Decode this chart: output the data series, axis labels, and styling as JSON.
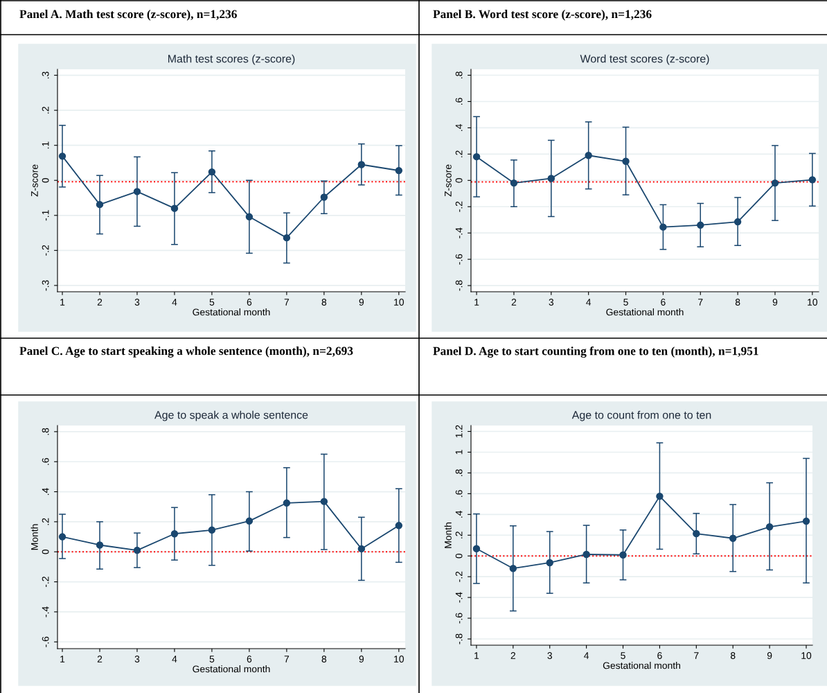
{
  "chart_data": [
    {
      "type": "line",
      "title": "Panel A. Math test score (z-score), n=1,236",
      "subtitle": "Math test scores (z-score)",
      "xlabel": "Gestational month",
      "ylabel": "Z-score",
      "x": [
        1,
        2,
        3,
        4,
        5,
        6,
        7,
        8,
        9,
        10
      ],
      "series": [
        {
          "color": "#1a476f",
          "values": [
            0.069,
            -0.069,
            -0.032,
            -0.08,
            0.024,
            -0.104,
            -0.164,
            -0.048,
            0.045,
            0.028
          ],
          "errors": [
            [
              -0.019,
              0.157
            ],
            [
              -0.153,
              0.014
            ],
            [
              -0.131,
              0.067
            ],
            [
              -0.183,
              0.022
            ],
            [
              -0.035,
              0.084
            ],
            [
              -0.208,
              0.0
            ],
            [
              -0.236,
              -0.093
            ],
            [
              -0.095,
              -0.002
            ],
            [
              -0.013,
              0.104
            ],
            [
              -0.042,
              0.099
            ]
          ]
        }
      ],
      "xlim": [
        0.87,
        10.17
      ],
      "xticks": [
        1,
        2,
        3,
        4,
        5,
        6,
        7,
        8,
        9,
        10
      ],
      "ylim": [
        -0.318,
        0.317
      ],
      "yticks": [
        {
          "value": -0.3,
          "label": "-.3"
        },
        {
          "value": -0.2,
          "label": "-.2"
        },
        {
          "value": -0.1,
          "label": "-.1"
        },
        0,
        {
          "value": 0.1,
          "label": ".1"
        },
        {
          "value": 0.2,
          "label": ".2"
        },
        {
          "value": 0.3,
          "label": ".3"
        }
      ],
      "ref_lines": [
        {
          "axis": "y",
          "value": -0.004,
          "color": "#ff0000",
          "line_style": "dotted"
        }
      ],
      "grid": "y",
      "marker": "circle",
      "line_style": "solid"
    },
    {
      "type": "line",
      "title": "Panel B. Word test score (z-score), n=1,236",
      "subtitle": "Word test scores (z-score)",
      "xlabel": "Gestational month",
      "ylabel": "Z-score",
      "x": [
        1,
        2,
        3,
        4,
        5,
        6,
        7,
        8,
        9,
        10
      ],
      "series": [
        {
          "color": "#1a476f",
          "values": [
            0.18,
            -0.02,
            0.015,
            0.19,
            0.145,
            -0.355,
            -0.34,
            -0.315,
            -0.02,
            0.005
          ],
          "errors": [
            [
              -0.125,
              0.485
            ],
            [
              -0.2,
              0.155
            ],
            [
              -0.275,
              0.305
            ],
            [
              -0.065,
              0.445
            ],
            [
              -0.11,
              0.405
            ],
            [
              -0.525,
              -0.185
            ],
            [
              -0.505,
              -0.175
            ],
            [
              -0.495,
              -0.13
            ],
            [
              -0.305,
              0.265
            ],
            [
              -0.195,
              0.205
            ]
          ]
        }
      ],
      "xlim": [
        0.85,
        10.17
      ],
      "xticks": [
        1,
        2,
        3,
        4,
        5,
        6,
        7,
        8,
        9,
        10
      ],
      "ylim": [
        -0.847,
        0.845
      ],
      "yticks": [
        {
          "value": -0.8,
          "label": "-.8"
        },
        {
          "value": -0.6,
          "label": "-.6"
        },
        {
          "value": -0.4,
          "label": "-.4"
        },
        {
          "value": -0.2,
          "label": "-.2"
        },
        0,
        {
          "value": 0.2,
          "label": ".2"
        },
        {
          "value": 0.4,
          "label": ".4"
        },
        {
          "value": 0.6,
          "label": ".6"
        },
        {
          "value": 0.8,
          "label": ".8"
        }
      ],
      "ref_lines": [
        {
          "axis": "y",
          "value": -0.012,
          "color": "#ff0000",
          "line_style": "dotted"
        }
      ],
      "grid": "y",
      "marker": "circle",
      "line_style": "solid"
    },
    {
      "type": "line",
      "title": "Panel C. Age to start speaking a whole sentence (month), n=2,693",
      "subtitle": "Age to speak a whole sentence",
      "xlabel": "Gestational month",
      "ylabel": "Month",
      "x": [
        1,
        2,
        3,
        4,
        5,
        6,
        7,
        8,
        9,
        10
      ],
      "series": [
        {
          "color": "#1a476f",
          "values": [
            0.1,
            0.045,
            0.01,
            0.12,
            0.145,
            0.205,
            0.325,
            0.335,
            0.02,
            0.175
          ],
          "errors": [
            [
              -0.045,
              0.25
            ],
            [
              -0.115,
              0.2
            ],
            [
              -0.105,
              0.125
            ],
            [
              -0.055,
              0.295
            ],
            [
              -0.09,
              0.38
            ],
            [
              0.005,
              0.4
            ],
            [
              0.095,
              0.56
            ],
            [
              0.015,
              0.65
            ],
            [
              -0.19,
              0.23
            ],
            [
              -0.07,
              0.42
            ]
          ]
        }
      ],
      "xlim": [
        0.87,
        10.17
      ],
      "xticks": [
        1,
        2,
        3,
        4,
        5,
        6,
        7,
        8,
        9,
        10
      ],
      "ylim": [
        -0.645,
        0.841
      ],
      "yticks": [
        {
          "value": -0.6,
          "label": "-.6"
        },
        {
          "value": -0.4,
          "label": "-.4"
        },
        {
          "value": -0.2,
          "label": "-.2"
        },
        0,
        {
          "value": 0.2,
          "label": ".2"
        },
        {
          "value": 0.4,
          "label": ".4"
        },
        {
          "value": 0.6,
          "label": ".6"
        },
        {
          "value": 0.8,
          "label": ".8"
        }
      ],
      "ref_lines": [
        {
          "axis": "y",
          "value": 0,
          "color": "#ff0000",
          "line_style": "dotted"
        }
      ],
      "grid": "y",
      "marker": "circle",
      "line_style": "solid"
    },
    {
      "type": "line",
      "title": "Panel D. Age to start counting from one to ten (month), n=1,951",
      "subtitle": "Age to count from one to ten",
      "xlabel": "Gestational month",
      "ylabel": "Month",
      "x": [
        1,
        2,
        3,
        4,
        5,
        6,
        7,
        8,
        9,
        10
      ],
      "series": [
        {
          "color": "#1a476f",
          "values": [
            0.07,
            -0.12,
            -0.065,
            0.015,
            0.01,
            0.575,
            0.215,
            0.17,
            0.28,
            0.335
          ],
          "errors": [
            [
              -0.265,
              0.405
            ],
            [
              -0.53,
              0.29
            ],
            [
              -0.36,
              0.235
            ],
            [
              -0.26,
              0.295
            ],
            [
              -0.23,
              0.25
            ],
            [
              0.065,
              1.09
            ],
            [
              0.02,
              0.41
            ],
            [
              -0.15,
              0.495
            ],
            [
              -0.135,
              0.705
            ],
            [
              -0.26,
              0.94
            ]
          ]
        }
      ],
      "xlim": [
        0.85,
        10.17
      ],
      "xticks": [
        1,
        2,
        3,
        4,
        5,
        6,
        7,
        8,
        9,
        10
      ],
      "ylim": [
        -0.86,
        1.257
      ],
      "yticks": [
        {
          "value": -0.8,
          "label": "-.8"
        },
        {
          "value": -0.6,
          "label": "-.6"
        },
        {
          "value": -0.4,
          "label": "-.4"
        },
        {
          "value": -0.2,
          "label": "-.2"
        },
        0,
        {
          "value": 0.2,
          "label": ".2"
        },
        {
          "value": 0.4,
          "label": ".4"
        },
        {
          "value": 0.6,
          "label": ".6"
        },
        {
          "value": 0.8,
          "label": ".8"
        },
        1,
        1.2
      ],
      "ref_lines": [
        {
          "axis": "y",
          "value": 0,
          "color": "#ff0000",
          "line_style": "dotted"
        }
      ],
      "grid": "y",
      "marker": "circle",
      "line_style": "solid"
    }
  ]
}
